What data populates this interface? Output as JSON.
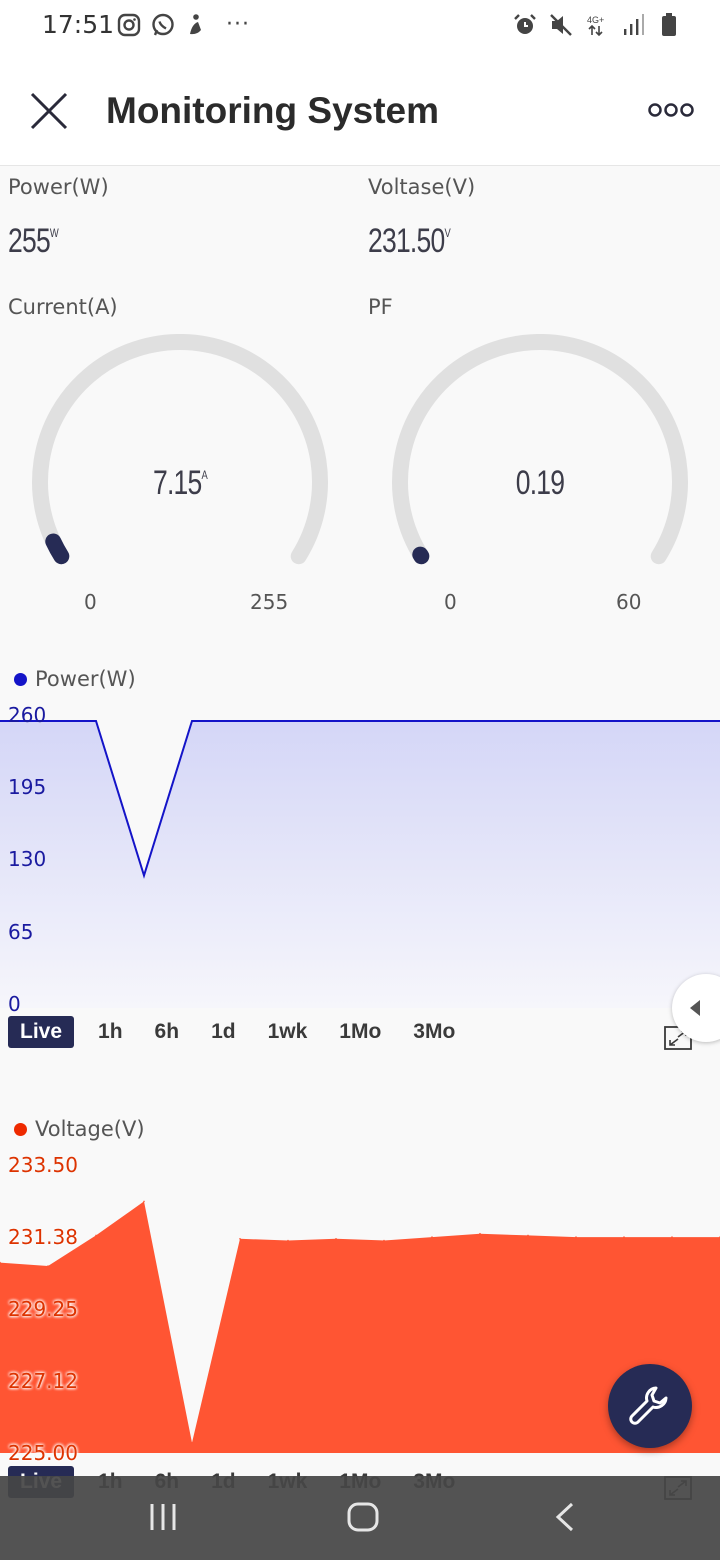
{
  "status_bar": {
    "time": "17:51",
    "left_icons": [
      "instagram-icon",
      "whatsapp-icon",
      "app-icon",
      "more-dots"
    ],
    "more": "···",
    "right_icons": [
      "alarm-icon",
      "mute-icon",
      "network-4g-icon",
      "signal-icon",
      "battery-icon"
    ],
    "network_label": "4G+"
  },
  "header": {
    "title": "Monitoring System"
  },
  "tiles": {
    "power_label": "Power(W)",
    "power_value": "255",
    "power_unit": "W",
    "voltage_label": "Voltase(V)",
    "voltage_value": "231.50",
    "voltage_unit": "V",
    "current_label": "Current(A)",
    "pf_label": "PF"
  },
  "gauges": [
    {
      "name": "current",
      "value": "7.15",
      "unit": "A",
      "min": "0",
      "max": "255",
      "numeric": 7.15,
      "range": [
        0,
        255
      ],
      "color": "#262b55"
    },
    {
      "name": "pf",
      "value": "0.19",
      "unit": "",
      "min": "0",
      "max": "60",
      "numeric": 0.19,
      "range": [
        0,
        60
      ],
      "color": "#262b55"
    }
  ],
  "ranges": [
    "Live",
    "1h",
    "6h",
    "1d",
    "1wk",
    "1Mo",
    "3Mo"
  ],
  "active_range": "Live",
  "colors": {
    "power": "#1414c8",
    "voltage": "#ff5533",
    "accent": "#262b55"
  },
  "chart_data": [
    {
      "type": "area",
      "legend": "Power(W)",
      "yticks": [
        "260",
        "195",
        "130",
        "65",
        "0"
      ],
      "ylim": [
        0,
        260
      ],
      "series": [
        {
          "name": "Power(W)",
          "values": [
            260,
            260,
            120,
            260,
            260,
            260,
            260,
            260,
            260,
            260,
            260,
            260,
            260,
            260,
            260,
            260
          ]
        }
      ]
    },
    {
      "type": "area",
      "legend": "Voltage(V)",
      "yticks": [
        "233.50",
        "231.38",
        "229.25",
        "227.12",
        "225.00"
      ],
      "ylim": [
        225.0,
        233.5
      ],
      "series": [
        {
          "name": "Voltage(V)",
          "values": [
            230.6,
            230.5,
            231.4,
            232.4,
            225.3,
            231.3,
            231.25,
            231.3,
            231.25,
            231.35,
            231.45,
            231.4,
            231.35,
            231.35,
            231.35,
            231.35
          ]
        }
      ]
    }
  ],
  "fab": {
    "icon": "wrench-icon"
  },
  "navbar": {
    "items": [
      "recent-apps-icon",
      "home-icon",
      "back-icon"
    ]
  }
}
